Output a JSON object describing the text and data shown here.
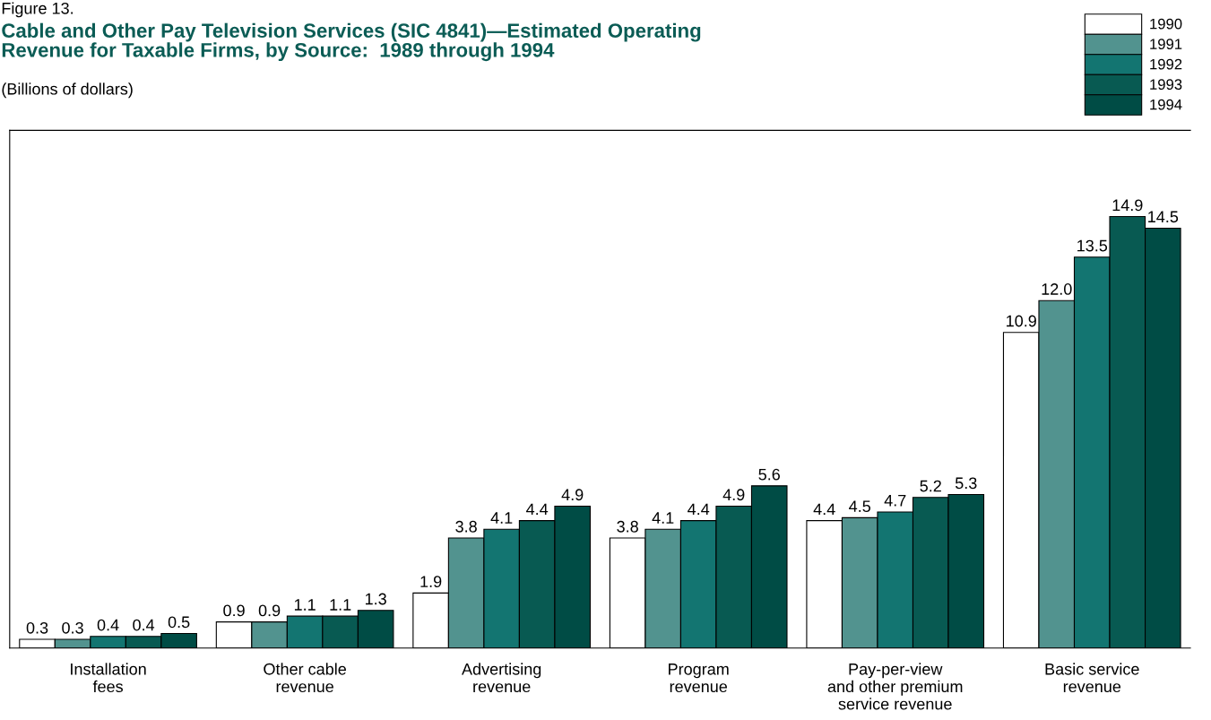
{
  "chart_data": {
    "type": "bar",
    "title": "Cable and Other Pay Television Services (SIC 4841)—Estimated Operating\nRevenue for Taxable Firms, by Source:  1989 through 1994",
    "subtitle": "(Billions of dollars)",
    "annotations": [
      "Figure 13."
    ],
    "categories": [
      "Installation\nfees",
      "Other cable\nrevenue",
      "Advertising\nrevenue",
      "Program\nrevenue",
      "Pay-per-view\nand other premium\nservice revenue",
      "Basic service\nrevenue"
    ],
    "series": [
      {
        "name": "1990",
        "color": "#ffffff",
        "values": [
          0.3,
          0.9,
          1.9,
          3.8,
          4.4,
          10.9
        ],
        "value_labels": [
          "0.3",
          "0.9",
          "1.9",
          "3.8",
          "4.4",
          "10.9"
        ]
      },
      {
        "name": "1991",
        "color": "#52938f",
        "values": [
          0.3,
          0.9,
          3.8,
          4.1,
          4.5,
          12.0
        ],
        "value_labels": [
          "0.3",
          "0.9",
          "3.8",
          "4.1",
          "4.5",
          "12.0"
        ]
      },
      {
        "name": "1992",
        "color": "#137571",
        "values": [
          0.4,
          1.1,
          4.1,
          4.4,
          4.7,
          13.5
        ],
        "value_labels": [
          "0.4",
          "1.1",
          "4.1",
          "4.4",
          "4.7",
          "13.5"
        ]
      },
      {
        "name": "1993",
        "color": "#085a52",
        "values": [
          0.4,
          1.1,
          4.4,
          4.9,
          5.2,
          14.9
        ],
        "value_labels": [
          "0.4",
          "1.1",
          "4.4",
          "4.9",
          "5.2",
          "14.9"
        ]
      },
      {
        "name": "1994",
        "color": "#004c45",
        "values": [
          0.5,
          1.3,
          4.9,
          5.6,
          5.3,
          14.5
        ],
        "value_labels": [
          "0.5",
          "1.3",
          "4.9",
          "5.6",
          "5.3",
          "14.5"
        ]
      }
    ],
    "legend": "top right",
    "grid": false
  }
}
